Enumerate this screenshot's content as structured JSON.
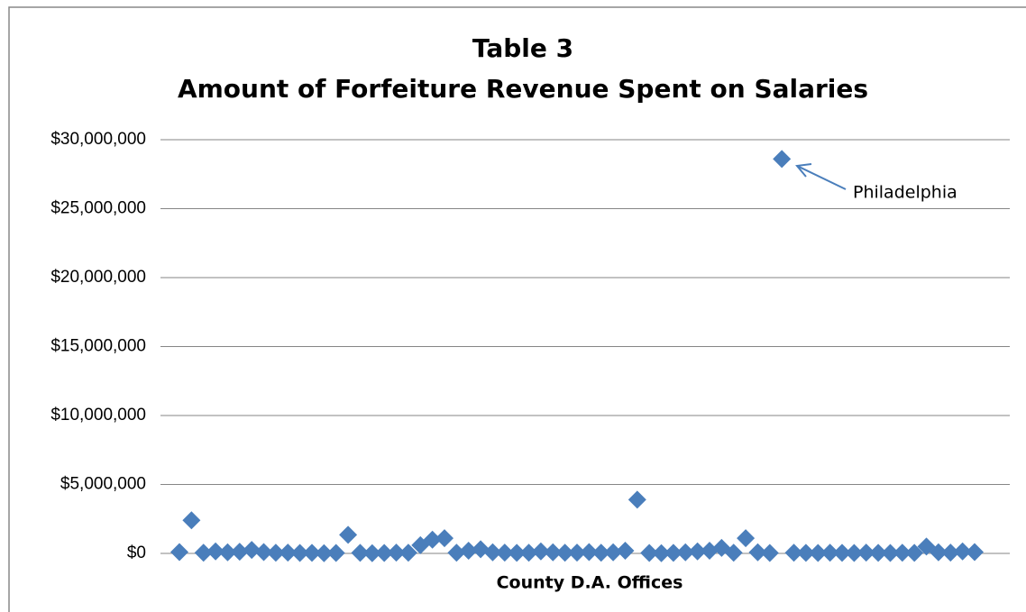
{
  "chart_data": {
    "type": "scatter",
    "title": "Table 3",
    "subtitle": "Amount of Forfeiture Revenue Spent on Salaries",
    "xlabel": "County D.A. Offices",
    "values": [
      100000,
      2400000,
      50000,
      150000,
      80000,
      120000,
      250000,
      100000,
      50000,
      60000,
      30000,
      40000,
      20000,
      30000,
      1350000,
      40000,
      20000,
      30000,
      60000,
      50000,
      600000,
      1000000,
      1100000,
      50000,
      200000,
      300000,
      80000,
      60000,
      40000,
      50000,
      150000,
      80000,
      50000,
      60000,
      100000,
      50000,
      80000,
      200000,
      3900000,
      30000,
      20000,
      40000,
      80000,
      150000,
      200000,
      400000,
      50000,
      1100000,
      80000,
      30000,
      28600000,
      50000,
      40000,
      30000,
      50000,
      40000,
      30000,
      60000,
      40000,
      30000,
      50000,
      40000,
      500000,
      80000,
      60000,
      150000,
      100000
    ],
    "color": "#4a7ebb",
    "ylim": [
      0,
      30000000
    ],
    "yticks": [
      {
        "value": 0,
        "label": "$0"
      },
      {
        "value": 5000000,
        "label": "$5,000,000"
      },
      {
        "value": 10000000,
        "label": "$10,000,000"
      },
      {
        "value": 15000000,
        "label": "$15,000,000"
      },
      {
        "value": 20000000,
        "label": "$20,000,000"
      },
      {
        "value": 25000000,
        "label": "$25,000,000"
      },
      {
        "value": 30000000,
        "label": "$30,000,000"
      }
    ],
    "grid": true,
    "annotation": {
      "text": "Philadelphia"
    }
  }
}
